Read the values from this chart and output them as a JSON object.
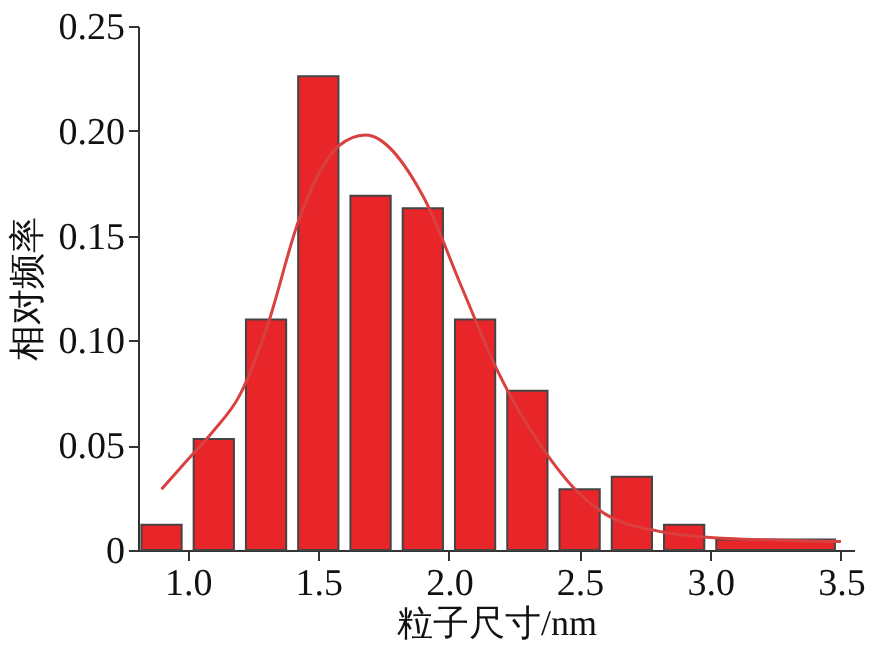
{
  "chart_data": {
    "type": "histogram",
    "xlabel": "粒子尺寸/nm",
    "ylabel": "相对频率",
    "bins": [
      0.8,
      1.0,
      1.2,
      1.4,
      1.6,
      1.8,
      2.0,
      2.2,
      2.4,
      2.6,
      2.8,
      3.0,
      3.5
    ],
    "values": [
      0.012,
      0.053,
      0.11,
      0.226,
      0.169,
      0.163,
      0.11,
      0.076,
      0.029,
      0.035,
      0.012,
      0.005
    ],
    "color": "#e8262a",
    "series": [
      {
        "type": "line",
        "color": "#d94040",
        "x": [
          0.9,
          1.0,
          1.1,
          1.2,
          1.3,
          1.43,
          1.58,
          1.68,
          1.9,
          2.05,
          2.18,
          2.39,
          2.49,
          2.6,
          2.8,
          3.0,
          3.5
        ],
        "values": [
          0.029,
          0.043,
          0.057,
          0.074,
          0.105,
          0.159,
          0.193,
          0.198,
          0.169,
          0.125,
          0.087,
          0.043,
          0.028,
          0.017,
          0.009,
          0.006,
          0.004
        ]
      }
    ],
    "xlim": [
      0.81,
      3.55
    ],
    "xticks": [
      {
        "value": 1.0,
        "label": "1.0"
      },
      1.5,
      {
        "value": 2.0,
        "label": "2.0"
      },
      2.5,
      {
        "value": 3.0,
        "label": "3.0"
      },
      3.5
    ],
    "ylim": [
      0,
      0.25
    ],
    "yticks": [
      0,
      0.05,
      {
        "value": 0.1,
        "label": "0.10"
      },
      0.15,
      {
        "value": 0.2,
        "label": "0.20"
      },
      0.25
    ],
    "grid": false
  }
}
